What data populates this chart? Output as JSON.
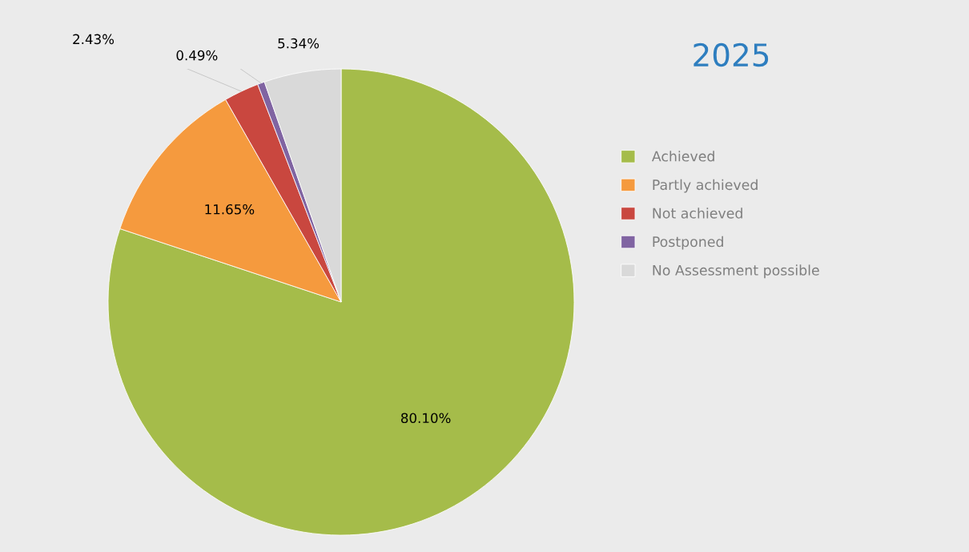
{
  "chart_data": {
    "type": "pie",
    "title": "2025",
    "categories": [
      "Achieved",
      "Partly achieved",
      "Not achieved",
      "Postponed",
      "No Assessment possible"
    ],
    "values": [
      80.1,
      11.65,
      2.43,
      0.49,
      5.34
    ],
    "colors": [
      "#a5bc4a",
      "#f59a3e",
      "#c9473f",
      "#8064a2",
      "#d9d9d9"
    ],
    "value_labels": [
      "80.10%",
      "11.65%",
      "2.43%",
      "0.49%",
      "5.34%"
    ],
    "legend": "right"
  }
}
